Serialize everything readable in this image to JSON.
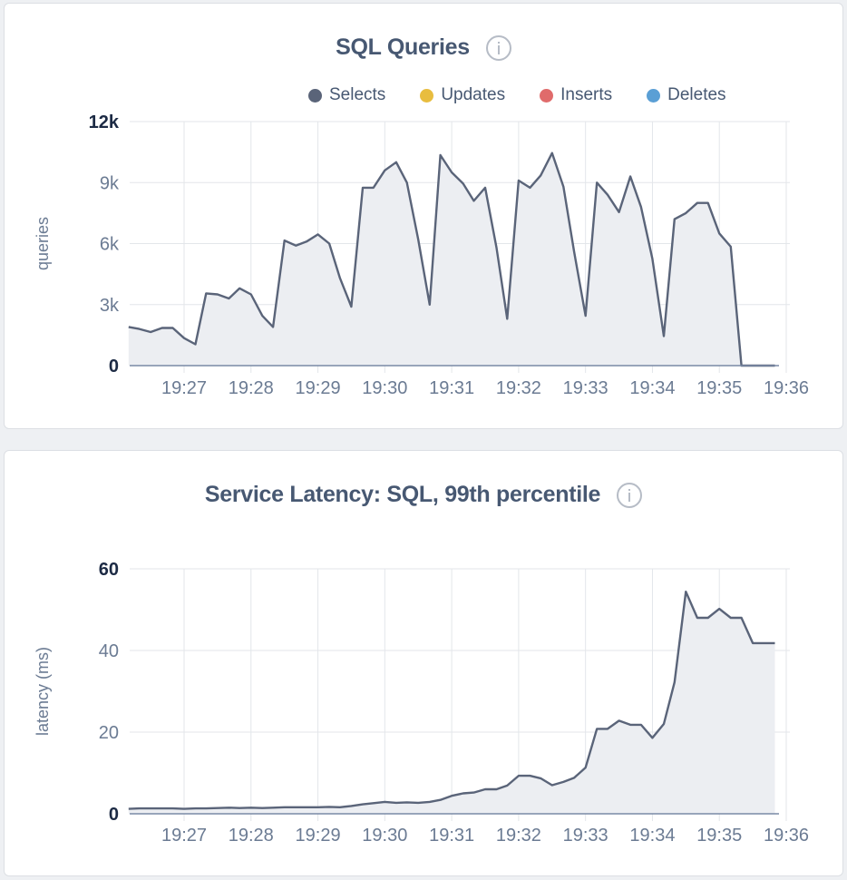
{
  "chart_data": [
    {
      "type": "area",
      "title": "SQL Queries",
      "ylabel": "queries",
      "ylim": [
        0,
        12000
      ],
      "y_ticks": [
        "0",
        "3k",
        "6k",
        "9k",
        "12k"
      ],
      "y_tick_values": [
        0,
        3000,
        6000,
        9000,
        12000
      ],
      "x_tick_labels": [
        "19:27",
        "19:28",
        "19:29",
        "19:30",
        "19:31",
        "19:32",
        "19:33",
        "19:34",
        "19:35",
        "19:36"
      ],
      "x_unit": "minutes after 19:00",
      "xlim": [
        26.17,
        36.0
      ],
      "grid": true,
      "legend": {
        "placement": "top-right",
        "items": [
          {
            "label": "Selects",
            "color": "#5a6479"
          },
          {
            "label": "Updates",
            "color": "#e8bd3f"
          },
          {
            "label": "Inserts",
            "color": "#e06b6b"
          },
          {
            "label": "Deletes",
            "color": "#5a9fd5"
          }
        ]
      },
      "series": [
        {
          "name": "Selects",
          "color": "#5a6479",
          "x": [
            26.17,
            26.33,
            26.5,
            26.67,
            26.83,
            27.0,
            27.17,
            27.33,
            27.5,
            27.67,
            27.83,
            28.0,
            28.17,
            28.33,
            28.5,
            28.67,
            28.83,
            29.0,
            29.17,
            29.33,
            29.5,
            29.67,
            29.83,
            30.0,
            30.17,
            30.33,
            30.5,
            30.67,
            30.83,
            31.0,
            31.17,
            31.33,
            31.5,
            31.67,
            31.83,
            32.0,
            32.17,
            32.33,
            32.5,
            32.67,
            32.83,
            33.0,
            33.17,
            33.33,
            33.5,
            33.67,
            33.83,
            34.0,
            34.17,
            34.33,
            34.5,
            34.67,
            34.83,
            35.0,
            35.17,
            35.33,
            35.83
          ],
          "values": [
            1900,
            1800,
            1650,
            1850,
            1850,
            1350,
            1050,
            3550,
            3500,
            3300,
            3800,
            3500,
            2450,
            1900,
            6150,
            5900,
            6100,
            6450,
            6000,
            4300,
            2900,
            8750,
            8750,
            9600,
            10000,
            9000,
            6200,
            3000,
            10350,
            9500,
            8950,
            8100,
            8750,
            5800,
            2300,
            9100,
            8750,
            9350,
            10450,
            8800,
            5600,
            2450,
            9000,
            8400,
            7550,
            9300,
            7800,
            5250,
            1450,
            7200,
            7500,
            8000,
            8000,
            6500,
            5850,
            0,
            0
          ]
        }
      ]
    },
    {
      "type": "area",
      "title": "Service Latency: SQL, 99th percentile",
      "ylabel": "latency (ms)",
      "ylim": [
        0,
        60
      ],
      "y_ticks": [
        "0",
        "20",
        "40",
        "60"
      ],
      "y_tick_values": [
        0,
        20,
        40,
        60
      ],
      "x_tick_labels": [
        "19:27",
        "19:28",
        "19:29",
        "19:30",
        "19:31",
        "19:32",
        "19:33",
        "19:34",
        "19:35",
        "19:36"
      ],
      "x_unit": "minutes after 19:00",
      "xlim": [
        26.17,
        36.0
      ],
      "grid": true,
      "series": [
        {
          "color": "#5a6479",
          "x": [
            26.17,
            26.33,
            26.5,
            26.67,
            26.83,
            27.0,
            27.17,
            27.33,
            27.5,
            27.67,
            27.83,
            28.0,
            28.17,
            28.33,
            28.5,
            28.67,
            28.83,
            29.0,
            29.17,
            29.33,
            29.5,
            29.67,
            29.83,
            30.0,
            30.17,
            30.33,
            30.5,
            30.67,
            30.83,
            31.0,
            31.17,
            31.33,
            31.5,
            31.67,
            31.83,
            32.0,
            32.17,
            32.33,
            32.5,
            32.67,
            32.83,
            33.0,
            33.17,
            33.33,
            33.5,
            33.67,
            33.83,
            34.0,
            34.17,
            34.33,
            34.5,
            34.67,
            34.83,
            35.0,
            35.17,
            35.33,
            35.5,
            35.67,
            35.83
          ],
          "values": [
            1.2,
            1.3,
            1.3,
            1.3,
            1.3,
            1.2,
            1.3,
            1.3,
            1.4,
            1.5,
            1.4,
            1.5,
            1.4,
            1.5,
            1.6,
            1.6,
            1.6,
            1.6,
            1.7,
            1.6,
            1.9,
            2.3,
            2.6,
            2.9,
            2.7,
            2.8,
            2.7,
            2.9,
            3.4,
            4.4,
            5.0,
            5.2,
            6.0,
            6.0,
            6.9,
            9.3,
            9.3,
            8.7,
            7.0,
            7.8,
            8.8,
            11.3,
            20.8,
            20.8,
            22.8,
            21.8,
            21.8,
            18.6,
            22.0,
            32.2,
            54.4,
            48.0,
            48.0,
            50.2,
            48.0,
            48.0,
            41.8,
            41.8,
            41.8
          ]
        }
      ]
    }
  ]
}
